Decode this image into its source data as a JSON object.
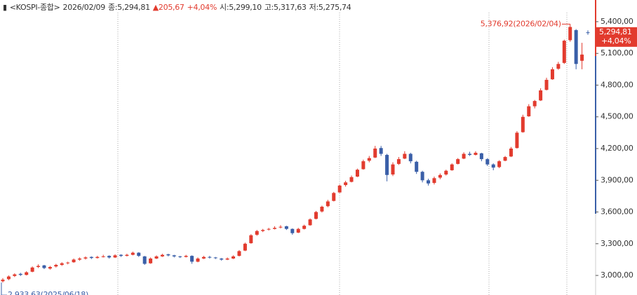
{
  "chart_data": {
    "type": "candlestick",
    "title": {
      "name": "<KOSPI-종합>",
      "date": "2026/02/09",
      "close": "종:5,294,81",
      "change": "▲205,67",
      "pct": "+4,04%",
      "open": "시:5,299,10",
      "high": "고:5,317,63",
      "low": "저:5,275,74"
    },
    "max_label": "5,376,92(2026/02/04)",
    "min_label": "2,933,63(2025/06/18)",
    "last_label": "5,294,81",
    "last_change": "+4,04%",
    "up_color": "#e23b2e",
    "down_color": "#3a5fa8",
    "ylim": [
      2815,
      5605
    ],
    "yticks": [
      {
        "value": 3000,
        "label": "3,000,00"
      },
      {
        "value": 3300,
        "label": "3,300,00"
      },
      {
        "value": 3600,
        "label": "3,600,00"
      },
      {
        "value": 3900,
        "label": "3,900,00"
      },
      {
        "value": 4200,
        "label": "4,200,00"
      },
      {
        "value": 4500,
        "label": "4,500,00"
      },
      {
        "value": 4800,
        "label": "4,800,00"
      },
      {
        "value": 5100,
        "label": "5,100,00"
      },
      {
        "value": 5400,
        "label": "5,400,00"
      }
    ],
    "ohlc": [
      [
        2945,
        2975,
        2933.63,
        2960
      ],
      [
        2965,
        3000,
        2955,
        2990
      ],
      [
        2995,
        3020,
        2985,
        3010
      ],
      [
        3015,
        3025,
        2995,
        3005
      ],
      [
        3005,
        3040,
        3000,
        3030
      ],
      [
        3035,
        3085,
        3030,
        3075
      ],
      [
        3080,
        3105,
        3070,
        3090
      ],
      [
        3095,
        3100,
        3060,
        3070
      ],
      [
        3065,
        3090,
        3055,
        3080
      ],
      [
        3085,
        3110,
        3075,
        3100
      ],
      [
        3100,
        3125,
        3090,
        3115
      ],
      [
        3120,
        3130,
        3105,
        3122
      ],
      [
        3125,
        3160,
        3120,
        3150
      ],
      [
        3150,
        3170,
        3140,
        3160
      ],
      [
        3160,
        3180,
        3150,
        3170
      ],
      [
        3175,
        3180,
        3155,
        3165
      ],
      [
        3165,
        3185,
        3160,
        3175
      ],
      [
        3175,
        3195,
        3170,
        3180
      ],
      [
        3185,
        3190,
        3160,
        3170
      ],
      [
        3170,
        3200,
        3165,
        3190
      ],
      [
        3195,
        3200,
        3175,
        3185
      ],
      [
        3185,
        3205,
        3180,
        3195
      ],
      [
        3195,
        3225,
        3190,
        3215
      ],
      [
        3215,
        3220,
        3175,
        3185
      ],
      [
        3180,
        3185,
        3100,
        3110
      ],
      [
        3115,
        3170,
        3110,
        3160
      ],
      [
        3160,
        3190,
        3155,
        3180
      ],
      [
        3180,
        3205,
        3175,
        3195
      ],
      [
        3200,
        3205,
        3180,
        3190
      ],
      [
        3190,
        3195,
        3170,
        3180
      ],
      [
        3180,
        3185,
        3165,
        3175
      ],
      [
        3175,
        3195,
        3170,
        3185
      ],
      [
        3185,
        3190,
        3110,
        3130
      ],
      [
        3130,
        3170,
        3125,
        3160
      ],
      [
        3160,
        3185,
        3155,
        3175
      ],
      [
        3175,
        3185,
        3160,
        3170
      ],
      [
        3170,
        3175,
        3155,
        3165
      ],
      [
        3160,
        3165,
        3140,
        3150
      ],
      [
        3150,
        3170,
        3145,
        3160
      ],
      [
        3160,
        3190,
        3155,
        3180
      ],
      [
        3185,
        3240,
        3180,
        3230
      ],
      [
        3235,
        3310,
        3230,
        3300
      ],
      [
        3305,
        3390,
        3300,
        3380
      ],
      [
        3385,
        3430,
        3375,
        3420
      ],
      [
        3420,
        3440,
        3410,
        3430
      ],
      [
        3435,
        3450,
        3425,
        3440
      ],
      [
        3440,
        3465,
        3435,
        3450
      ],
      [
        3455,
        3475,
        3445,
        3460
      ],
      [
        3465,
        3470,
        3430,
        3440
      ],
      [
        3440,
        3445,
        3385,
        3400
      ],
      [
        3405,
        3450,
        3400,
        3440
      ],
      [
        3440,
        3480,
        3435,
        3470
      ],
      [
        3475,
        3540,
        3470,
        3530
      ],
      [
        3535,
        3610,
        3530,
        3600
      ],
      [
        3605,
        3660,
        3595,
        3650
      ],
      [
        3655,
        3715,
        3645,
        3700
      ],
      [
        3705,
        3790,
        3700,
        3780
      ],
      [
        3785,
        3860,
        3780,
        3850
      ],
      [
        3855,
        3895,
        3840,
        3880
      ],
      [
        3885,
        3945,
        3880,
        3930
      ],
      [
        3935,
        4010,
        3930,
        4000
      ],
      [
        4005,
        4095,
        4000,
        4080
      ],
      [
        4085,
        4130,
        4070,
        4110
      ],
      [
        4115,
        4225,
        4110,
        4200
      ],
      [
        4205,
        4225,
        4130,
        4150
      ],
      [
        4140,
        4150,
        3890,
        3950
      ],
      [
        3955,
        4070,
        3940,
        4050
      ],
      [
        4055,
        4120,
        4045,
        4100
      ],
      [
        4105,
        4175,
        4100,
        4150
      ],
      [
        4150,
        4160,
        4060,
        4080
      ],
      [
        4075,
        4085,
        3960,
        3980
      ],
      [
        3980,
        3990,
        3880,
        3900
      ],
      [
        3900,
        3915,
        3850,
        3870
      ],
      [
        3875,
        3935,
        3860,
        3920
      ],
      [
        3925,
        3965,
        3910,
        3950
      ],
      [
        3955,
        4000,
        3945,
        3990
      ],
      [
        3995,
        4060,
        3990,
        4050
      ],
      [
        4055,
        4110,
        4050,
        4100
      ],
      [
        4105,
        4165,
        4100,
        4150
      ],
      [
        4150,
        4170,
        4130,
        4140
      ],
      [
        4140,
        4175,
        4135,
        4160
      ],
      [
        4155,
        4160,
        4080,
        4100
      ],
      [
        4100,
        4110,
        4035,
        4050
      ],
      [
        4050,
        4060,
        3995,
        4020
      ],
      [
        4025,
        4090,
        4015,
        4080
      ],
      [
        4085,
        4130,
        4080,
        4120
      ],
      [
        4125,
        4215,
        4120,
        4200
      ],
      [
        4205,
        4365,
        4200,
        4350
      ],
      [
        4355,
        4520,
        4350,
        4500
      ],
      [
        4505,
        4620,
        4500,
        4600
      ],
      [
        4600,
        4660,
        4580,
        4650
      ],
      [
        4655,
        4770,
        4650,
        4750
      ],
      [
        4755,
        4870,
        4750,
        4850
      ],
      [
        4855,
        4970,
        4850,
        4950
      ],
      [
        4955,
        5020,
        4945,
        5000
      ],
      [
        5010,
        5230,
        5000,
        5220
      ],
      [
        5225,
        5376.92,
        5210,
        5350
      ],
      [
        5320,
        5330,
        4950,
        5000
      ],
      [
        5030,
        5200,
        4950,
        5089.14
      ],
      [
        5299.1,
        5317.63,
        5275.74,
        5294.81
      ]
    ]
  }
}
